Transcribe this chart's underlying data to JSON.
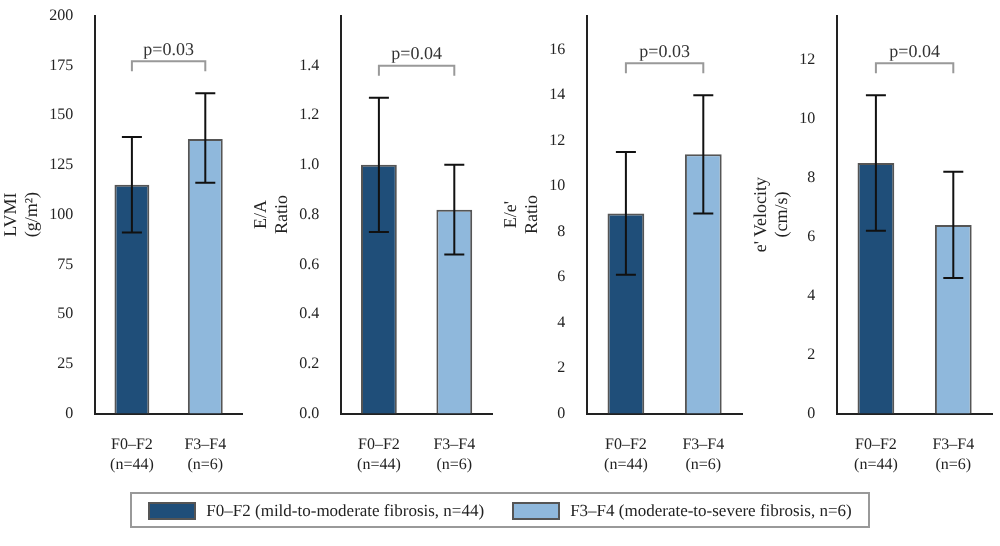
{
  "chart_data": [
    {
      "type": "bar",
      "ylabel": "LVMI\n(g/m²)",
      "categories": [
        "F0–F2\n(n=44)",
        "F3–F4\n(n=6)"
      ],
      "ylim": [
        0,
        200
      ],
      "yticks": [
        0,
        25,
        50,
        75,
        100,
        125,
        150,
        175,
        200
      ],
      "legend": "bottom",
      "annotations": [
        "p=0.03"
      ],
      "series": [
        {
          "name": "F0–F2 (mild-to-moderate fibrosis, n=44)",
          "color": "#1f4e79",
          "values": [
            115,
            null
          ],
          "errors": [
            [
              91,
              139
            ],
            null
          ]
        },
        {
          "name": "F3–F4 (moderate-to-severe fibrosis, n=6)",
          "color": "#8fb8dc",
          "values": [
            null,
            138
          ],
          "errors": [
            null,
            [
              116,
              161
            ]
          ]
        }
      ]
    },
    {
      "type": "bar",
      "ylabel": "E/A\nRatio",
      "categories": [
        "F0–F2\n(n=44)",
        "F3–F4\n(n=6)"
      ],
      "ylim": [
        0,
        1.6
      ],
      "yticks": [
        {
          "value": 0,
          "label": "0.0"
        },
        0.2,
        0.4,
        0.6,
        0.8,
        {
          "value": 1,
          "label": "1.0"
        },
        1.2,
        1.4
      ],
      "annotations": [
        "p=0.04"
      ],
      "series": [
        {
          "color": "#1f4e79",
          "values": [
            1.0,
            null
          ],
          "errors": [
            [
              0.73,
              1.27
            ],
            null
          ]
        },
        {
          "color": "#8fb8dc",
          "values": [
            null,
            0.82
          ],
          "errors": [
            null,
            [
              0.64,
              1.0
            ]
          ]
        }
      ]
    },
    {
      "type": "bar",
      "ylabel": "E/e'\nRatio",
      "categories": [
        "F0–F2\n(n=44)",
        "F3–F4\n(n=6)"
      ],
      "ylim": [
        0,
        17.5
      ],
      "yticks": [
        0,
        2,
        4,
        6,
        8,
        10,
        12,
        14,
        16
      ],
      "annotations": [
        "p=0.03"
      ],
      "series": [
        {
          "color": "#1f4e79",
          "values": [
            8.8,
            null
          ],
          "errors": [
            [
              6.1,
              11.5
            ],
            null
          ]
        },
        {
          "color": "#8fb8dc",
          "values": [
            null,
            11.4
          ],
          "errors": [
            null,
            [
              8.8,
              14.0
            ]
          ]
        }
      ]
    },
    {
      "type": "bar",
      "ylabel": "e' Velocity\n(cm/s)",
      "categories": [
        "F0–F2\n(n=44)",
        "F3–F4\n(n=6)"
      ],
      "ylim": [
        0,
        13.5
      ],
      "yticks": [
        0,
        2,
        4,
        6,
        8,
        10,
        12
      ],
      "annotations": [
        "p=0.04"
      ],
      "series": [
        {
          "color": "#1f4e79",
          "values": [
            8.5,
            null
          ],
          "errors": [
            [
              6.2,
              10.8
            ],
            null
          ]
        },
        {
          "color": "#8fb8dc",
          "values": [
            null,
            6.4
          ],
          "errors": [
            null,
            [
              4.6,
              8.2
            ]
          ]
        }
      ]
    }
  ]
}
